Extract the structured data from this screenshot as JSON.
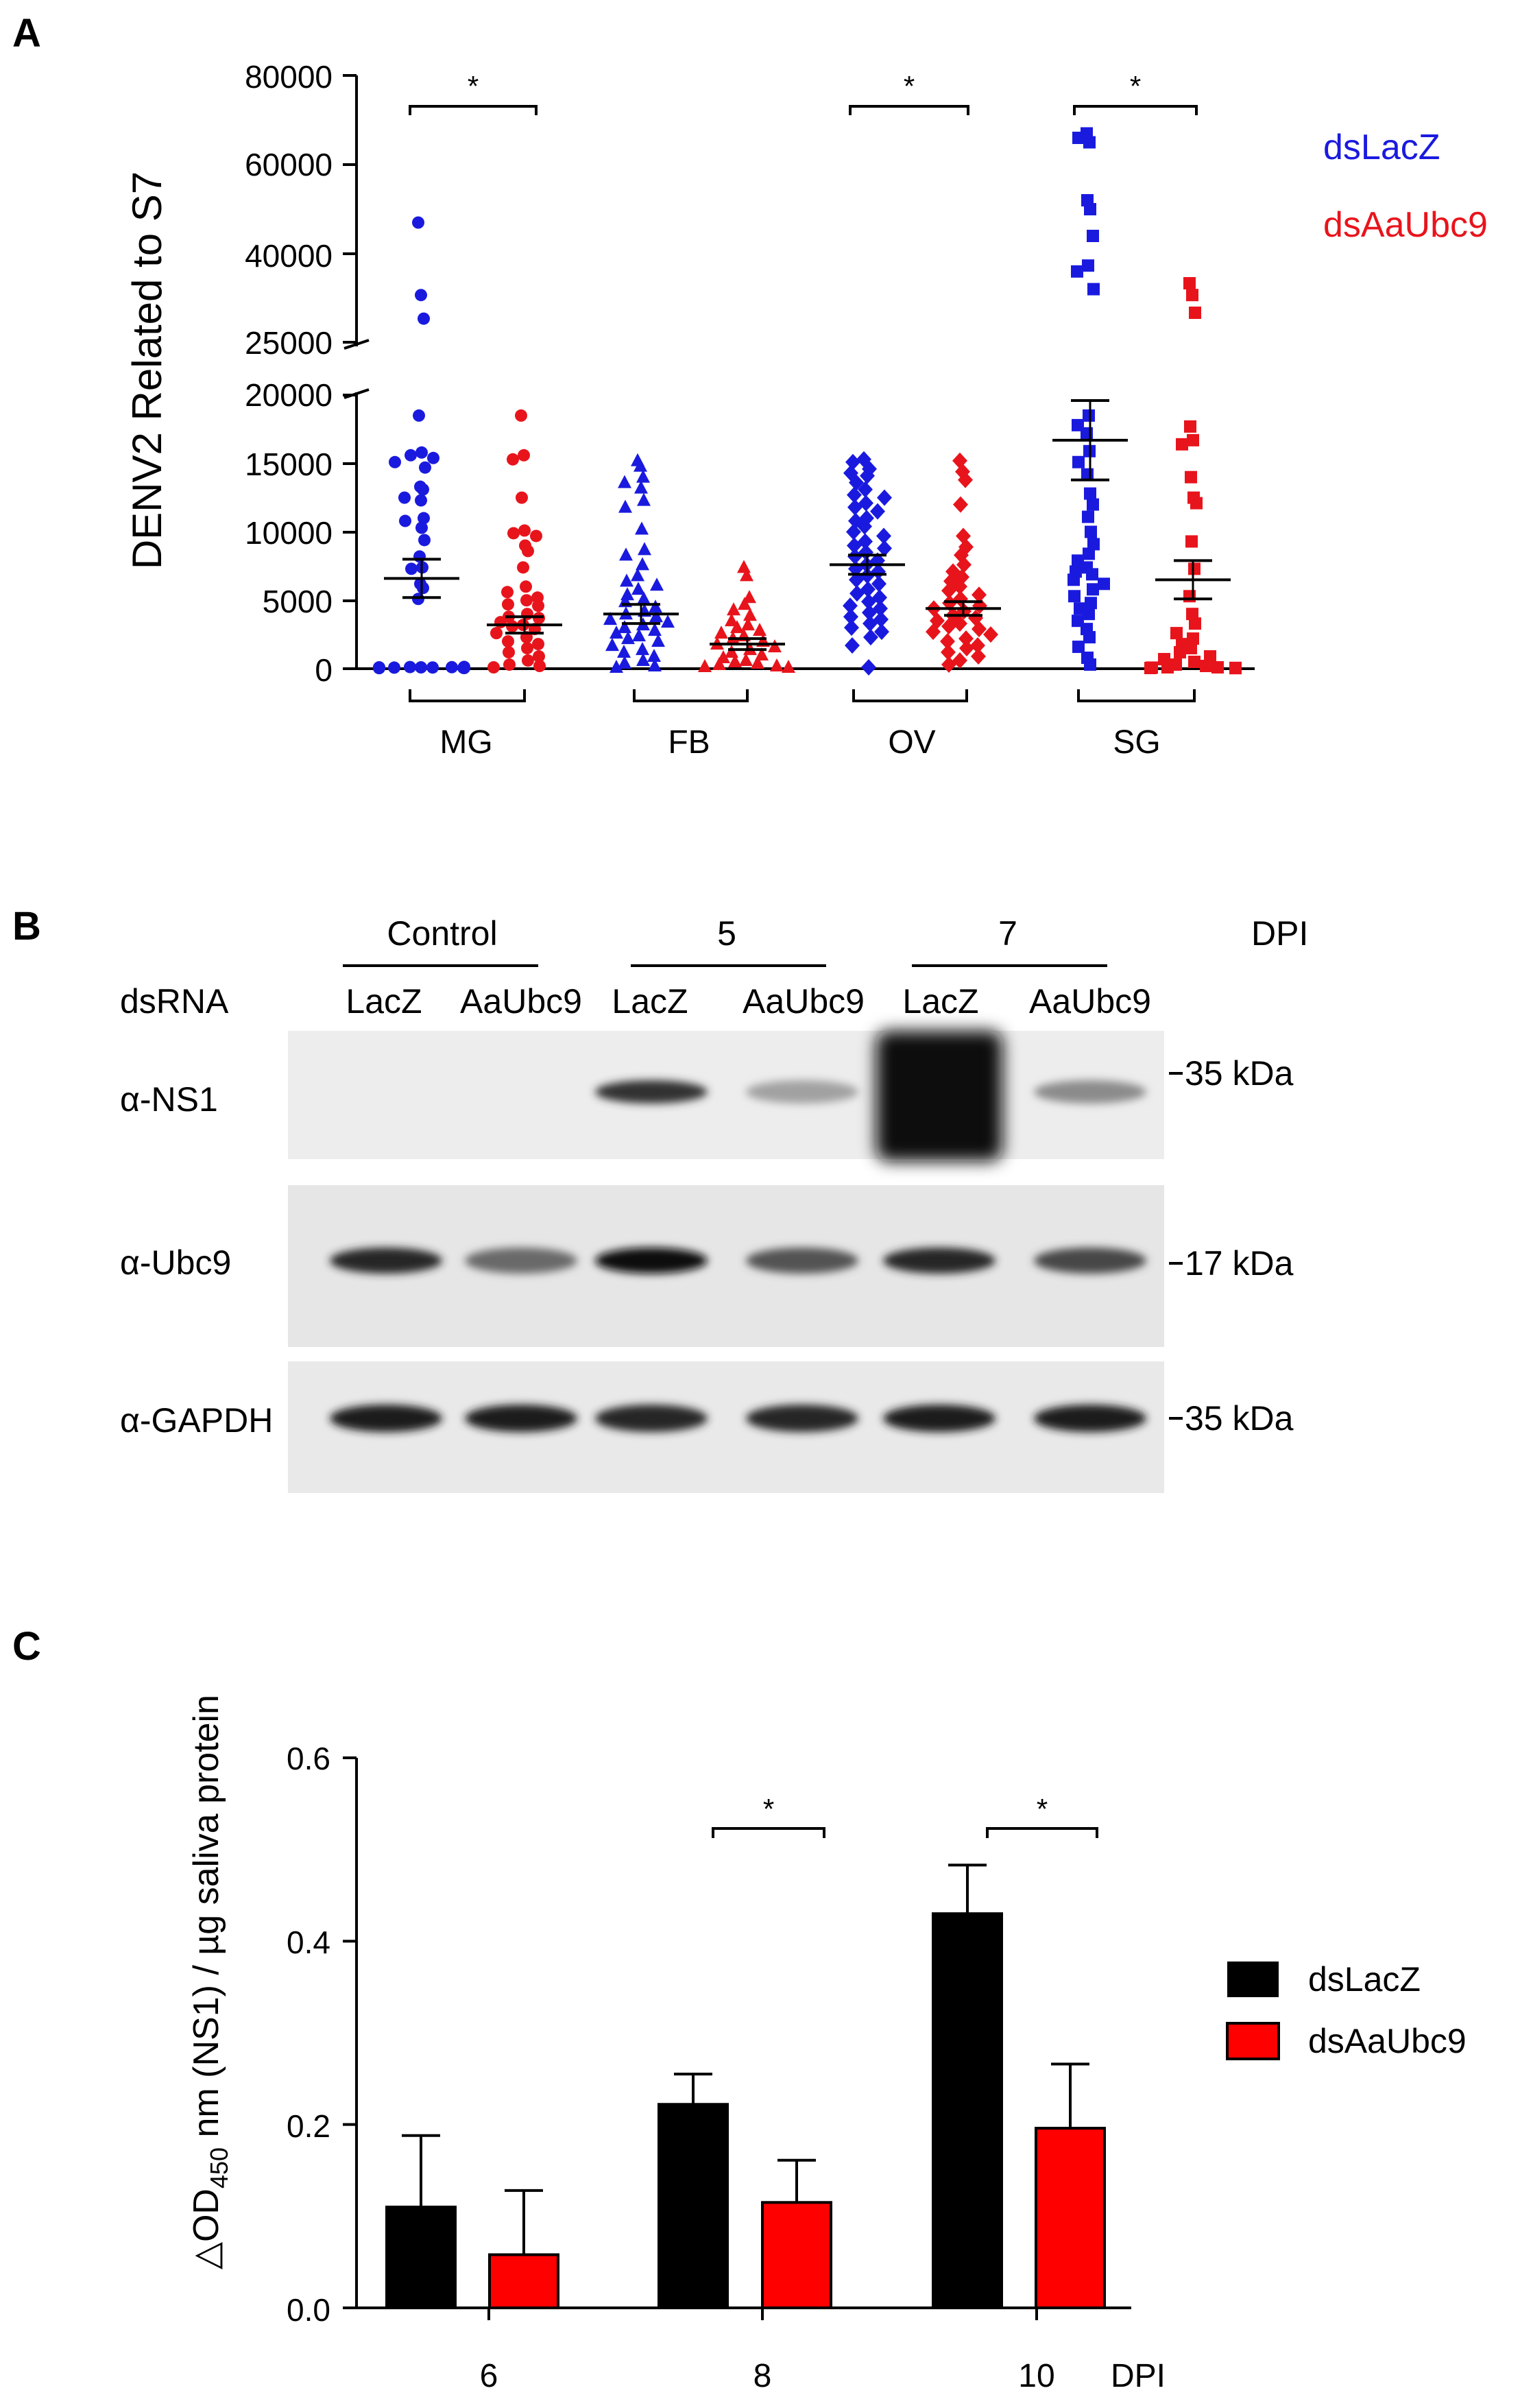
{
  "panel_labels": {
    "a": "A",
    "b": "B",
    "c": "C"
  },
  "colors": {
    "lacz": "#1a1adf",
    "ubc9": "#e8141c",
    "black": "#000000",
    "bar_red": "#ff0000"
  },
  "chart_data": [
    {
      "panel": "A",
      "type": "scatter",
      "ylabel": "DENV2 Related to S7",
      "y_ticks_lower": [
        "0",
        "5000",
        "10000",
        "15000",
        "20000"
      ],
      "y_ticks_upper": [
        "25000",
        "40000",
        "60000",
        "80000"
      ],
      "y_axis_break": [
        20000,
        25000
      ],
      "ylim_lower": [
        0,
        20000
      ],
      "ylim_upper": [
        25000,
        80000
      ],
      "categories": [
        "MG",
        "FB",
        "OV",
        "SG"
      ],
      "legend": [
        "dsLacZ",
        "dsAaUbc9"
      ],
      "legend_position": "top-right",
      "significance": [
        {
          "tissue": "MG",
          "label": "*"
        },
        {
          "tissue": "OV",
          "label": "*"
        },
        {
          "tissue": "SG",
          "label": "*"
        }
      ],
      "groups": [
        {
          "tissue": "MG",
          "series": "dsLacZ",
          "marker": "circle",
          "mean": 6600,
          "sem": 1400,
          "values": [
            47000,
            33000,
            29000,
            18500,
            15800,
            15600,
            15400,
            15100,
            14700,
            13300,
            13100,
            12500,
            12300,
            11000,
            10800,
            10300,
            9400,
            8200,
            7400,
            7300,
            6200,
            5900,
            5100,
            100,
            120,
            90,
            80,
            110,
            70,
            60,
            100,
            50,
            40,
            130,
            80
          ]
        },
        {
          "tissue": "MG",
          "series": "dsAaUbc9",
          "marker": "circle",
          "mean": 3200,
          "sem": 600,
          "values": [
            18500,
            15600,
            15300,
            12500,
            10100,
            9900,
            9700,
            9000,
            8600,
            7400,
            6000,
            5600,
            5200,
            5000,
            4700,
            4600,
            4000,
            3800,
            3700,
            3400,
            3200,
            3100,
            2900,
            2600,
            2300,
            2000,
            1800,
            1500,
            1200,
            900,
            600,
            300,
            200,
            100
          ]
        },
        {
          "tissue": "FB",
          "series": "dsLacZ",
          "marker": "triangle",
          "mean": 4000,
          "sem": 700,
          "values": [
            15200,
            14800,
            14000,
            13600,
            13200,
            12300,
            11800,
            10200,
            8700,
            8300,
            7600,
            6800,
            6400,
            6100,
            5800,
            5400,
            5100,
            4900,
            4500,
            4200,
            4000,
            3800,
            3600,
            3400,
            3200,
            3000,
            2800,
            2600,
            2400,
            2200,
            2000,
            1700,
            1400,
            1200,
            900,
            600,
            400,
            200,
            100
          ]
        },
        {
          "tissue": "FB",
          "series": "dsAaUbc9",
          "marker": "triangle",
          "mean": 1800,
          "sem": 400,
          "values": [
            7400,
            6800,
            5200,
            4700,
            4300,
            3900,
            3500,
            3200,
            3000,
            2800,
            2600,
            2400,
            2200,
            2000,
            1800,
            1600,
            1400,
            1200,
            1000,
            800,
            600,
            500,
            400,
            300,
            200,
            150,
            100
          ]
        },
        {
          "tissue": "OV",
          "series": "dsLacZ",
          "marker": "diamond",
          "mean": 7600,
          "sem": 700,
          "values": [
            15300,
            15100,
            14600,
            14300,
            14100,
            13600,
            13100,
            12700,
            12500,
            12100,
            11800,
            11500,
            11000,
            10800,
            10400,
            10000,
            9700,
            9300,
            9000,
            8800,
            8500,
            8200,
            7900,
            7600,
            7300,
            7100,
            6800,
            6500,
            6200,
            5800,
            5500,
            5200,
            4900,
            4600,
            4400,
            4100,
            3800,
            3600,
            3300,
            3000,
            2700,
            2300,
            1700,
            100
          ]
        },
        {
          "tissue": "OV",
          "series": "dsAaUbc9",
          "marker": "diamond",
          "mean": 4400,
          "sem": 500,
          "values": [
            15200,
            14400,
            13800,
            12000,
            9700,
            8900,
            8300,
            7600,
            7100,
            6700,
            6400,
            6000,
            5700,
            5400,
            5100,
            4800,
            4600,
            4400,
            4200,
            3900,
            3700,
            3500,
            3300,
            3100,
            2900,
            2700,
            2500,
            2200,
            2000,
            1700,
            1500,
            1200,
            900,
            600,
            300
          ]
        },
        {
          "tissue": "SG",
          "series": "dsLacZ",
          "marker": "square",
          "mean": 16700,
          "sem": 2900,
          "values": [
            67000,
            65000,
            66000,
            52000,
            50000,
            44000,
            38000,
            37000,
            34000,
            18500,
            17800,
            17200,
            15900,
            15100,
            14200,
            12800,
            12000,
            11100,
            10000,
            9100,
            8400,
            7900,
            7400,
            7100,
            6900,
            6500,
            6200,
            5800,
            5300,
            4800,
            4400,
            4000,
            3500,
            2900,
            2300,
            1600,
            800,
            300
          ]
        },
        {
          "tissue": "SG",
          "series": "dsAaUbc9",
          "marker": "square",
          "mean": 6500,
          "sem": 1400,
          "values": [
            35000,
            33000,
            30000,
            17700,
            16700,
            16400,
            14000,
            12500,
            12100,
            9300,
            7300,
            5300,
            4000,
            3300,
            2600,
            2200,
            1800,
            1500,
            1200,
            900,
            700,
            500,
            300,
            200,
            100,
            100,
            80,
            60,
            50,
            40
          ]
        }
      ]
    },
    {
      "panel": "C",
      "type": "bar",
      "ylabel_pre": "△OD",
      "ylabel_sub": "450",
      "ylabel_post": " nm (NS1) / µg saliva protein",
      "xlabel": "DPI",
      "categories": [
        "6",
        "8",
        "10"
      ],
      "y_ticks": [
        "0.0",
        "0.2",
        "0.4",
        "0.6"
      ],
      "ylim": [
        0,
        0.6
      ],
      "legend_position": "right",
      "series": [
        {
          "name": "dsLacZ",
          "values": [
            0.11,
            0.222,
            0.43
          ],
          "errors": [
            0.078,
            0.033,
            0.053
          ],
          "color": "#000000"
        },
        {
          "name": "dsAaUbc9",
          "values": [
            0.058,
            0.115,
            0.196
          ],
          "errors": [
            0.07,
            0.046,
            0.07
          ],
          "color": "#ff0000"
        }
      ],
      "significance": [
        {
          "category": "8",
          "label": "*"
        },
        {
          "category": "10",
          "label": "*"
        }
      ]
    }
  ],
  "blot": {
    "header_groups": [
      "Control",
      "5",
      "7"
    ],
    "dpi_label": "DPI",
    "dsrna_label": "dsRNA",
    "lane_labels": [
      "LacZ",
      "AaUbc9",
      "LacZ",
      "AaUbc9",
      "LacZ",
      "AaUbc9"
    ],
    "rows": [
      {
        "label": "α-NS1",
        "marker": "35 kDa",
        "intensity": [
          0,
          0,
          0.85,
          0.35,
          1.0,
          0.45
        ]
      },
      {
        "label": "α-Ubc9",
        "marker": "17 kDa",
        "intensity": [
          0.9,
          0.6,
          1.0,
          0.7,
          0.9,
          0.75
        ]
      },
      {
        "label": "α-GAPDH",
        "marker": "35 kDa",
        "intensity": [
          0.95,
          0.95,
          0.9,
          0.9,
          0.95,
          0.95
        ]
      }
    ]
  }
}
